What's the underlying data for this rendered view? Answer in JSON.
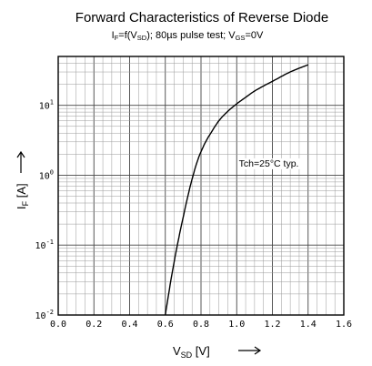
{
  "chart_data": {
    "type": "line",
    "title": "Forward Characteristics of Reverse Diode",
    "subtitle": "IF=f(VSD); 80µs pulse test; VGS=0V",
    "xlabel": "VSD [V]",
    "ylabel": "IF [A]",
    "xlim": [
      0.0,
      1.6
    ],
    "ylim": [
      0.01,
      50
    ],
    "yscale": "log",
    "grid": true,
    "x_ticks": [
      "0.0",
      "0.2",
      "0.4",
      "0.6",
      "0.8",
      "1.0",
      "1.2",
      "1.4",
      "1.6"
    ],
    "x_tick_values": [
      0.0,
      0.2,
      0.4,
      0.6,
      0.8,
      1.0,
      1.2,
      1.4,
      1.6
    ],
    "y_ticks": [
      {
        "base": "10",
        "exp": "-2",
        "value": 0.01
      },
      {
        "base": "10",
        "exp": "-1",
        "value": 0.1
      },
      {
        "base": "10",
        "exp": "0",
        "value": 1
      },
      {
        "base": "10",
        "exp": "1",
        "value": 10
      }
    ],
    "series": [
      {
        "x": [
          0.6,
          0.63,
          0.66,
          0.7,
          0.74,
          0.78,
          0.82,
          0.86,
          0.9,
          0.95,
          1.0,
          1.05,
          1.1,
          1.2,
          1.3,
          1.4
        ],
        "y": [
          0.01,
          0.03,
          0.08,
          0.25,
          0.7,
          1.6,
          2.8,
          4.2,
          6.0,
          8.2,
          10.5,
          13,
          16,
          22,
          30,
          38
        ]
      }
    ],
    "annotations": [
      {
        "text": "Tch=25°C  typ.",
        "x": 1.18,
        "y": 1.5
      }
    ]
  }
}
